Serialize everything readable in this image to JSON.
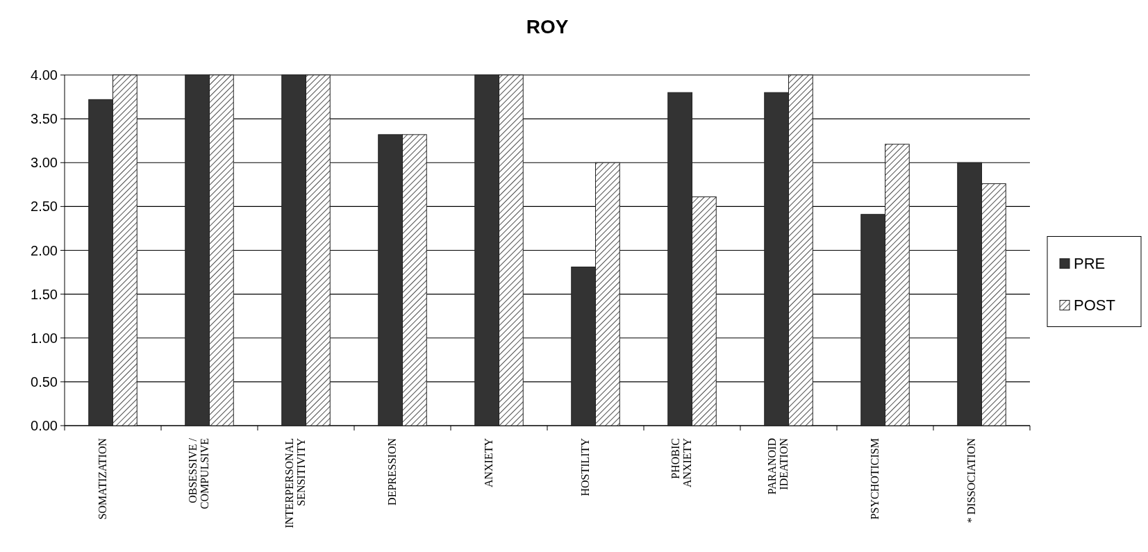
{
  "chart_data": {
    "type": "bar",
    "title": "ROY",
    "categories": [
      "SOMATIZATION",
      "OBSESSIVE /\nCOMPULSIVE",
      "INTERPERSONAL\nSENSITIVITY",
      "DEPRESSION",
      "ANXIETY",
      "HOSTILITY",
      "PHOBIC\nANXIETY",
      "PARANOID\nIDEATION",
      "PSYCHOTICISM",
      "* DISSOCIATION"
    ],
    "series": [
      {
        "name": "PRE",
        "color": "#333333",
        "values": [
          3.72,
          4.0,
          4.0,
          3.32,
          4.0,
          1.81,
          3.8,
          3.8,
          2.41,
          3.0
        ]
      },
      {
        "name": "POST",
        "color": "#222222",
        "values": [
          4.0,
          4.0,
          4.0,
          3.32,
          4.0,
          3.0,
          2.61,
          4.0,
          3.21,
          2.76
        ]
      }
    ],
    "ylim": [
      0,
      4
    ],
    "yticks": [
      {
        "value": 0,
        "label": "0.00"
      },
      {
        "value": 0.5,
        "label": "0.50"
      },
      {
        "value": 1,
        "label": "1.00"
      },
      {
        "value": 1.5,
        "label": "1.50"
      },
      {
        "value": 2,
        "label": "2.00"
      },
      {
        "value": 2.5,
        "label": "2.50"
      },
      {
        "value": 3,
        "label": "3.00"
      },
      {
        "value": 3.5,
        "label": "3.50"
      },
      {
        "value": 4,
        "label": "4.00"
      }
    ],
    "grid": "y",
    "legend": "right"
  }
}
